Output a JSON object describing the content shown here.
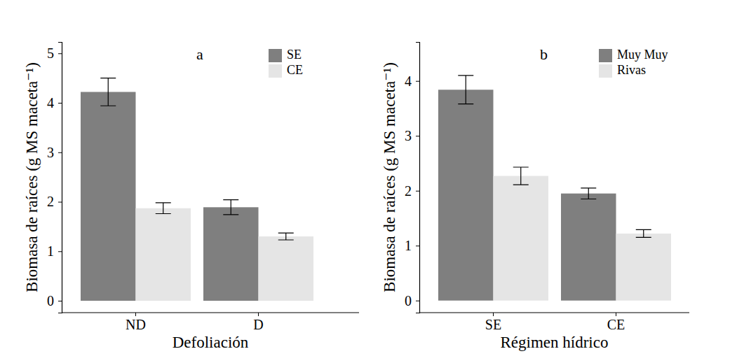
{
  "chart_data": [
    {
      "type": "bar",
      "title": "a",
      "x_label": "Defoliación",
      "y_label": "Biomasa de raíces (g MS maceta⁻¹)",
      "categories": [
        "ND",
        "D"
      ],
      "series": [
        {
          "name": "SE",
          "color": "#7f7f7f",
          "values": [
            4.22,
            1.89
          ],
          "errors": [
            0.28,
            0.15
          ]
        },
        {
          "name": "CE",
          "color": "#e5e5e5",
          "values": [
            1.87,
            1.3
          ],
          "errors": [
            0.11,
            0.07
          ]
        }
      ],
      "ylim": [
        -0.24,
        5.23
      ],
      "yticks": [
        0,
        1,
        2,
        3,
        4,
        5
      ],
      "legend": "top-right"
    },
    {
      "type": "bar",
      "title": "b",
      "x_label": "Régimen hídrico",
      "y_label": "Biomasa de raíces (g MS maceta⁻¹)",
      "categories": [
        "SE",
        "CE"
      ],
      "series": [
        {
          "name": "Muy Muy",
          "color": "#7f7f7f",
          "values": [
            3.84,
            1.95
          ],
          "errors": [
            0.26,
            0.1
          ]
        },
        {
          "name": "Rivas",
          "color": "#e5e5e5",
          "values": [
            2.27,
            1.22
          ],
          "errors": [
            0.16,
            0.07
          ]
        }
      ],
      "ylim": [
        -0.22,
        4.71
      ],
      "yticks": [
        0,
        1,
        2,
        3,
        4
      ],
      "legend": "top-right"
    }
  ]
}
